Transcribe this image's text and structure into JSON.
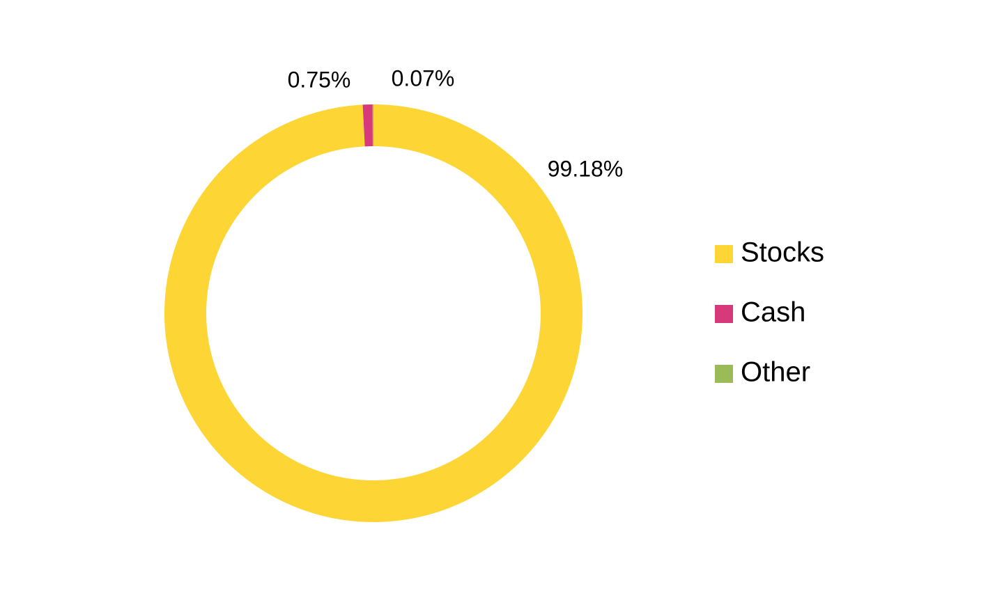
{
  "chart_data": {
    "type": "donut",
    "categories": [
      "Stocks",
      "Cash",
      "Other"
    ],
    "values": [
      99.18,
      0.75,
      0.07
    ],
    "value_labels": [
      "99.18%",
      "0.75%",
      "0.07%"
    ],
    "colors": [
      "#fdd535",
      "#d63a7a",
      "#9bbb59"
    ],
    "legend": "right"
  }
}
